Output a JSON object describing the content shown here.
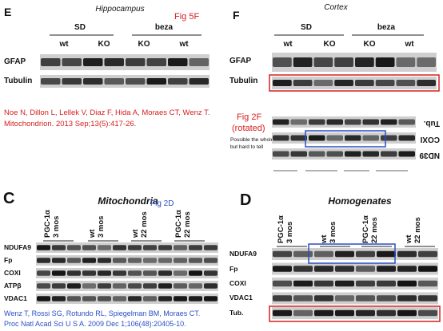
{
  "panel_e": {
    "letter": "E",
    "title": "Hippocampus",
    "fig_note": "Fig 5F",
    "groups": [
      "SD",
      "beza"
    ],
    "lanes": [
      "wt",
      "KO",
      "KO",
      "wt"
    ],
    "rows": [
      "GFAP",
      "Tubulin"
    ],
    "citation": [
      "Noe N, Dillon L, Lellek V, Diaz F, Hida A, Moraes CT, Wenz T.",
      "Mitochondrion. 2013 Sep;13(5):417-26."
    ]
  },
  "panel_f": {
    "letter": "F",
    "title": "Cortex",
    "groups": [
      "SD",
      "beza"
    ],
    "lanes": [
      "wt",
      "KO",
      "KO",
      "wt"
    ],
    "rows": [
      "GFAP",
      "Tubulin"
    ],
    "fig_note": [
      "Fig 2F",
      "(rotated)"
    ],
    "comment": [
      "Possible the whole panel,",
      "but hard to tell"
    ],
    "rotated_rows": [
      "Tub.",
      "COXI",
      "ND39"
    ]
  },
  "panel_c": {
    "letter": "C",
    "title": "Mitochondria",
    "fig_note": "Fig 2D",
    "columns": [
      [
        "PGC-1α",
        "3 mos"
      ],
      [
        "wt",
        "3 mos"
      ],
      [
        "wt",
        "22 mos"
      ],
      [
        "PGC-1α",
        "22 mos"
      ]
    ],
    "rows": [
      "NDUFA9",
      "Fp",
      "COXI",
      "ATPβ",
      "VDAC1"
    ],
    "citation": [
      "Wenz T, Rossi SG, Rotundo RL, Spiegelman BM, Moraes CT.",
      "Proc Natl Acad Sci U S A. 2009 Dec 1;106(48):20405-10."
    ]
  },
  "panel_d": {
    "letter": "D",
    "title": "Homogenates",
    "columns": [
      [
        "PGC-1α",
        "3 mos"
      ],
      [
        "wt",
        "3 mos"
      ],
      [
        "PGC-1α",
        "22 mos"
      ],
      [
        "wt",
        "22 mos"
      ]
    ],
    "rows": [
      "NDUFA9",
      "Fp",
      "COXI",
      "VDAC1",
      "Tub."
    ]
  }
}
